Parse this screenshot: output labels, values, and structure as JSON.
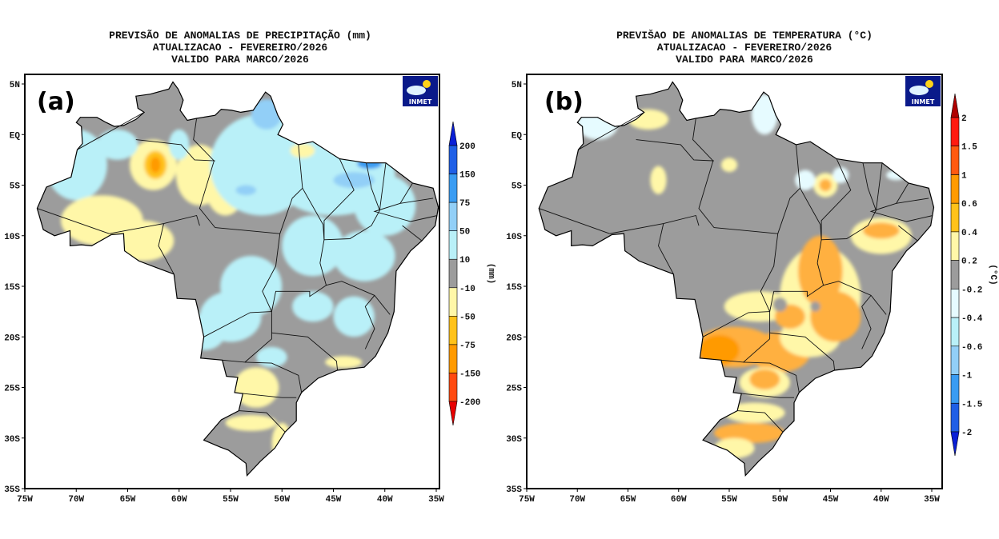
{
  "panels": [
    {
      "label": "(a)",
      "title_lines": [
        "PREVISÃO DE ANOMALIAS DE PRECIPITAÇÃO (mm)",
        "ATUALIZACAO - FEVEREIRO/2026",
        "VALIDO PARA MARCO/2026"
      ],
      "logo_text": "INMET",
      "colorbar": {
        "unit_label": "(mm)",
        "tick_labels": [
          "200",
          "150",
          "75",
          "50",
          "10",
          "-10",
          "-50",
          "-75",
          "-150",
          "-200"
        ],
        "colors_top_to_bottom": [
          "#0a1fd6",
          "#1f5fe6",
          "#3a9cf2",
          "#92cff7",
          "#b9f0f8",
          "#9c9c9c",
          "#fff7a8",
          "#ffc21a",
          "#ff9a00",
          "#ff4a10",
          "#e80000"
        ]
      }
    },
    {
      "label": "(b)",
      "title_lines": [
        "PREVIŠAO DE ANOMALIAS DE TEMPERATURA (°C)",
        "ATUALIZACAO - FEVEREIRO/2026",
        "VALIDO PARA MARCO/2026"
      ],
      "logo_text": "INMET",
      "colorbar": {
        "unit_label": "(°C)",
        "tick_labels": [
          "2",
          "1.5",
          "1",
          "0.6",
          "0.4",
          "0.2",
          "-0.2",
          "-0.4",
          "-0.6",
          "-1",
          "-1.5",
          "-2"
        ],
        "colors_top_to_bottom": [
          "#b00000",
          "#ff1a10",
          "#ff5a10",
          "#ff9a00",
          "#ffc21a",
          "#fff7a8",
          "#9c9c9c",
          "#e6fbff",
          "#b9f0f8",
          "#92cff7",
          "#3a9cf2",
          "#1f5fe6",
          "#0a1fd6"
        ]
      }
    }
  ],
  "axes": {
    "lat_labels": [
      "5N",
      "EQ",
      "5S",
      "10S",
      "15S",
      "20S",
      "25S",
      "30S",
      "35S"
    ],
    "lat_values": [
      5,
      0,
      -5,
      -10,
      -15,
      -20,
      -25,
      -30,
      -35
    ],
    "lon_labels": [
      "75W",
      "70W",
      "65W",
      "60W",
      "55W",
      "50W",
      "45W",
      "40W",
      "35W"
    ],
    "lon_values": [
      -75,
      -70,
      -65,
      -60,
      -55,
      -50,
      -45,
      -40,
      -35
    ]
  },
  "map_colors": {
    "neutral": "#9c9c9c",
    "light_blue": "#b9f0f8",
    "pale_blue": "#e6fbff",
    "mid_blue": "#92cff7",
    "blue": "#3a9cf2",
    "yellow": "#fff7a8",
    "orange_light": "#ffc21a",
    "orange": "#ffb040",
    "orange_dark": "#ff9a00"
  }
}
